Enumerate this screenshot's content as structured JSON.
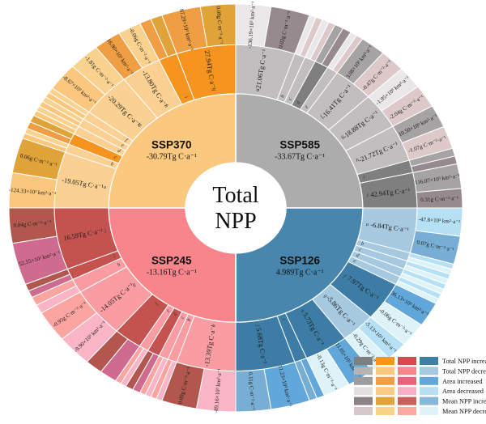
{
  "chart_data": {
    "type": "sunburst",
    "center_lines": [
      "Total",
      "NPP"
    ],
    "units": {
      "total_npp": "Tg C·a⁻¹",
      "area": "×10³ km²·a⁻¹",
      "mean_npp": "g C·m⁻²·a⁻¹"
    },
    "rings": [
      "scenario",
      "sub-region total NPP change (a–j)",
      "area change and mean NPP change"
    ],
    "palette": {
      "gray": {
        "inner": "#acacac",
        "midLight": "#c0bebe",
        "midDark": "#7f7f7f",
        "areaInc": "#a5a3a3",
        "areaDec": "#e9e7e7",
        "meanInc": "#978a8e",
        "meanDec": "#ddc9c9"
      },
      "blue": {
        "inner": "#4886ad",
        "midLight": "#a6c9e0",
        "midDark": "#3d7ca4",
        "areaInc": "#62a7da",
        "areaDec": "#b6e1f5",
        "meanInc": "#79aed4",
        "meanDec": "#def3f8"
      },
      "red": {
        "inner": "#f9858c",
        "midLight": "#f99da3",
        "midDark": "#c4534f",
        "areaInc": "#cf6b8e",
        "areaDec": "#f9b4c6",
        "meanInc": "#b2574e",
        "meanDec": "#fba4a0"
      },
      "orange": {
        "inner": "#fac87e",
        "midLight": "#fbd093",
        "midDark": "#f5941f",
        "areaInc": "#ef9e44",
        "areaDec": "#fbc77e",
        "meanInc": "#e0a339",
        "meanDec": "#fad28f"
      }
    },
    "quadrants": [
      {
        "name": "SSP585",
        "total": "-33.67Tg C·a⁻¹",
        "family": "gray",
        "start": 0,
        "segments": [
          {
            "letter": "a",
            "w": 19,
            "value": "-21.06Tg C·a⁻¹",
            "dark": false,
            "outer": [
              {
                "w": 9,
                "type": "areaDec",
                "label": "-136.19×10³ km²·a⁻¹"
              },
              {
                "w": 10,
                "type": "meanInc",
                "label": "0.02g C·m⁻²·a⁻¹"
              }
            ]
          },
          {
            "letter": "b",
            "w": 3.5,
            "dark": false
          },
          {
            "letter": "c",
            "w": 3.5,
            "dark": false
          },
          {
            "letter": "d",
            "w": 4.5,
            "dark": true
          },
          {
            "letter": "e",
            "w": 3.5,
            "dark": false
          },
          {
            "letter": "f",
            "w": 13,
            "value": "-16.41Tg C·a⁻¹",
            "dark": false,
            "outer": [
              {
                "w": 6.5,
                "type": "areaInc",
                "label": "3.08×10³ km²·a⁻¹"
              },
              {
                "w": 6.5,
                "type": "meanDec",
                "label": "-0.47g C·m⁻²·a⁻¹"
              }
            ]
          },
          {
            "letter": "g",
            "w": 13,
            "value": "-18.88Tg C·a⁻¹",
            "dark": false,
            "outer": [
              {
                "w": 6.5,
                "type": "areaDec",
                "label": "-1.95×10³ km²·a⁻¹"
              },
              {
                "w": 6.5,
                "type": "meanDec",
                "label": "-2.04g C·m⁻²·a⁻¹"
              }
            ]
          },
          {
            "letter": "h",
            "w": 13,
            "value": "-21.72Tg C·a⁻¹",
            "dark": false,
            "outer": [
              {
                "w": 6.5,
                "type": "areaInc",
                "label": "10.50×10³ km²·a⁻¹"
              },
              {
                "w": 6.5,
                "type": "meanDec",
                "label": "-1.07g C·m⁻²·a⁻¹"
              }
            ]
          },
          {
            "letter": "i",
            "w": 4.5,
            "dark": true
          },
          {
            "letter": "j",
            "w": 12.5,
            "value": "42.94Tg C·a⁻¹",
            "dark": true,
            "outer": [
              {
                "w": 7,
                "type": "areaInc",
                "label": "116.07×10³ km²·a⁻¹"
              },
              {
                "w": 5.5,
                "type": "meanInc",
                "label": "0.31g C·m⁻²·a⁻¹"
              }
            ]
          }
        ]
      },
      {
        "name": "SSP126",
        "total": "4.989Tg C·a⁻¹",
        "family": "blue",
        "start": 90,
        "segments": [
          {
            "letter": "a",
            "w": 16,
            "value": "-6.84Tg C·a⁻¹",
            "dark": false,
            "outer": [
              {
                "w": 8,
                "type": "areaDec",
                "label": "-47.8×10³ km²·a⁻¹"
              },
              {
                "w": 8,
                "type": "meanInc",
                "label": "0.07g C·m⁻²·a⁻¹"
              }
            ]
          },
          {
            "letter": "b",
            "w": 3,
            "dark": false
          },
          {
            "letter": "c",
            "w": 3,
            "dark": false
          },
          {
            "letter": "d",
            "w": 3,
            "dark": false
          },
          {
            "letter": "e",
            "w": 3,
            "dark": false
          },
          {
            "letter": "f",
            "w": 14,
            "value": "7.97Tg C·a⁻¹",
            "dark": true,
            "outer": [
              {
                "w": 7,
                "type": "areaInc",
                "label": "36.13×10³ km²·a⁻¹"
              },
              {
                "w": 7,
                "type": "meanDec",
                "label": "-0.06g C·m⁻²·a⁻¹"
              }
            ]
          },
          {
            "letter": "g",
            "w": 11,
            "value": "-5.86Tg C·a⁻¹",
            "dark": false,
            "outer": [
              {
                "w": 5.5,
                "type": "areaDec",
                "label": "-5.13×10³ km²·a⁻¹"
              },
              {
                "w": 5.5,
                "type": "meanDec",
                "label": "-0.29g C·m⁻²·a⁻¹"
              }
            ]
          },
          {
            "letter": "h",
            "w": 14,
            "value": "5.73Tg C·a⁻¹",
            "dark": true,
            "outer": [
              {
                "w": 7,
                "type": "areaInc",
                "label": "11.05×10³ km²·a⁻¹"
              },
              {
                "w": 7,
                "type": "meanDec",
                "label": "-0.13g C·m⁻²·a⁻¹"
              }
            ]
          },
          {
            "letter": "i",
            "w": 4,
            "dark": true
          },
          {
            "letter": "j",
            "w": 19,
            "value": "5.68Tg C·a⁻¹",
            "dark": true,
            "outer": [
              {
                "w": 10,
                "type": "areaInc",
                "label": "11.23×10³ km²·a⁻¹"
              },
              {
                "w": 9,
                "type": "meanInc",
                "label": "0.11g C·m⁻²·a⁻¹"
              }
            ]
          }
        ]
      },
      {
        "name": "SSP245",
        "total": "-13.16Tg C·a⁻¹",
        "family": "red",
        "start": 180,
        "segments": [
          {
            "letter": "a",
            "w": 19,
            "value": "-13.39Tg C·a⁻¹",
            "dark": false,
            "outer": [
              {
                "w": 10,
                "type": "areaDec",
                "label": "-89.16×10³ km²·a⁻¹"
              },
              {
                "w": 9,
                "type": "meanInc",
                "label": "0.09g C·m⁻²·a⁻¹"
              }
            ]
          },
          {
            "letter": "b",
            "w": 3,
            "dark": false
          },
          {
            "letter": "c",
            "w": 3,
            "dark": false
          },
          {
            "letter": "d",
            "w": 4,
            "dark": true
          },
          {
            "letter": "e",
            "w": 3,
            "dark": false
          },
          {
            "letter": "f",
            "w": 9,
            "dark": true
          },
          {
            "letter": "g",
            "w": 18,
            "value": "-14.05Tg C·a⁻¹",
            "dark": false,
            "outer": [
              {
                "w": 9,
                "type": "areaDec",
                "label": "-9.90×10³ km²·a⁻¹"
              },
              {
                "w": 9,
                "type": "meanDec",
                "label": "-0.95g C·m⁻²·a⁻¹"
              }
            ]
          },
          {
            "letter": "h",
            "w": 5,
            "dark": false
          },
          {
            "letter": "i",
            "w": 4,
            "dark": true
          },
          {
            "letter": "j",
            "w": 22,
            "value": "16.59Tg C·a⁻¹",
            "dark": true,
            "outer": [
              {
                "w": 12,
                "type": "areaInc",
                "label": "52.55×10³ km²·a⁻¹"
              },
              {
                "w": 10,
                "type": "meanInc",
                "label": "0.04g C·m⁻²·a⁻¹"
              }
            ]
          }
        ]
      },
      {
        "name": "SSP370",
        "total": "-30.79Tg C·a⁻¹",
        "family": "orange",
        "start": 270,
        "segments": [
          {
            "letter": "a",
            "w": 20,
            "value": "-19.05Tg C·a⁻¹",
            "dark": false,
            "outer": [
              {
                "w": 10,
                "type": "areaDec",
                "label": "-124.33×10³ km²·a⁻¹"
              },
              {
                "w": 10,
                "type": "meanInc",
                "label": "0.06g C·m⁻²·a⁻¹"
              }
            ]
          },
          {
            "letter": "b",
            "w": 3,
            "dark": false
          },
          {
            "letter": "c",
            "w": 4,
            "dark": true
          },
          {
            "letter": "d",
            "w": 3,
            "dark": false
          },
          {
            "letter": "e",
            "w": 3,
            "dark": false
          },
          {
            "letter": "f",
            "w": 3,
            "dark": false
          },
          {
            "letter": "g",
            "w": 16,
            "value": "-20.29Tg C·a⁻¹",
            "dark": false,
            "outer": [
              {
                "w": 8,
                "type": "areaDec",
                "label": "-8.67×10³ km²·a⁻¹"
              },
              {
                "w": 8,
                "type": "meanDec",
                "label": "-1.81g C·m⁻²·a⁻¹"
              }
            ]
          },
          {
            "letter": "h",
            "w": 13,
            "value": "-13.80Tg C·a⁻¹",
            "dark": false,
            "outer": [
              {
                "w": 7,
                "type": "areaInc",
                "label": "16.90×10³ km²·a⁻¹"
              },
              {
                "w": 6,
                "type": "meanDec",
                "label": "-0.06g C·m⁻²·a⁻¹"
              }
            ]
          },
          {
            "letter": "i",
            "w": 6,
            "dark": true
          },
          {
            "letter": "j",
            "w": 19,
            "value": "27.94Tg C·a⁻¹",
            "dark": true,
            "outer": [
              {
                "w": 10,
                "type": "areaInc",
                "label": "87.29×10³ km²·a⁻¹"
              },
              {
                "w": 9,
                "type": "meanInc",
                "label": "0.08g C·m⁻²·a⁻¹"
              }
            ]
          }
        ]
      }
    ],
    "legend": [
      {
        "label": "Total NPP increased",
        "swatches": [
          "#7f7f7f",
          "#f5941f",
          "#d6494f",
          "#3f7fa6"
        ]
      },
      {
        "label": "Total NPP decreased",
        "swatches": [
          "#b5b5b5",
          "#fbc87f",
          "#f9858c",
          "#a6c9e0"
        ]
      },
      {
        "label": "Area increased",
        "swatches": [
          "#9d9d9d",
          "#ef9e44",
          "#e8647e",
          "#62a7da"
        ]
      },
      {
        "label": "Area decreased",
        "swatches": [
          "#e2e0e0",
          "#fbcb85",
          "#f9aec4",
          "#b6e1f5"
        ]
      },
      {
        "label": "Mean NPP increased",
        "swatches": [
          "#8b8186",
          "#e0a339",
          "#cb5f5c",
          "#86b8da"
        ]
      },
      {
        "label": "Mean NPP decreased",
        "swatches": [
          "#d6c8c8",
          "#fad389",
          "#fba8a0",
          "#def3f8"
        ]
      }
    ]
  }
}
